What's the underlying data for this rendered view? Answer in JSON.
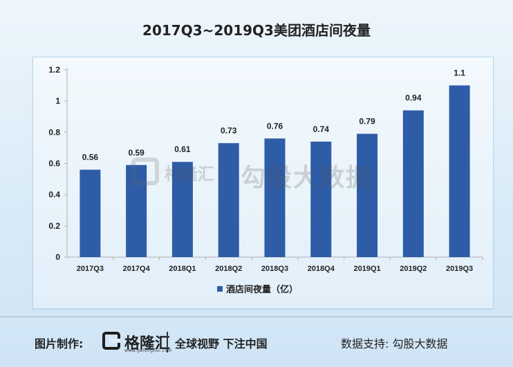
{
  "title": "2017Q3~2019Q3美团酒店间夜量",
  "footer": {
    "made_by_label": "图片制作:",
    "brand": "格隆汇",
    "brand_url": "www.gelonghui.com",
    "slogan": "全球视野 下注中国",
    "support": "数据支持: 勾股大数据"
  },
  "watermark": {
    "brand": "格隆汇",
    "text": "勾股大数据"
  },
  "colors": {
    "bar": "#2e5ca6",
    "axis": "#b0b0b0",
    "text": "#222222"
  },
  "chart_data": {
    "type": "bar",
    "title": "2017Q3~2019Q3美团酒店间夜量",
    "categories": [
      "2017Q3",
      "2017Q4",
      "2018Q1",
      "2018Q2",
      "2018Q3",
      "2018Q4",
      "2019Q1",
      "2019Q2",
      "2019Q3"
    ],
    "series": [
      {
        "name": "酒店间夜量（亿）",
        "values": [
          0.56,
          0.59,
          0.61,
          0.73,
          0.76,
          0.74,
          0.79,
          0.94,
          1.1
        ]
      }
    ],
    "value_labels": [
      "0.56",
      "0.59",
      "0.61",
      "0.73",
      "0.76",
      "0.74",
      "0.79",
      "0.94",
      "1.1"
    ],
    "ylim": [
      0,
      1.2
    ],
    "yticks": [
      0,
      0.2,
      0.4,
      0.6,
      0.8,
      1,
      1.2
    ],
    "ytick_labels": [
      "0",
      "0.2",
      "0.4",
      "0.6",
      "0.8",
      "1",
      "1.2"
    ],
    "grid": false,
    "legend_position": "bottom-center"
  }
}
